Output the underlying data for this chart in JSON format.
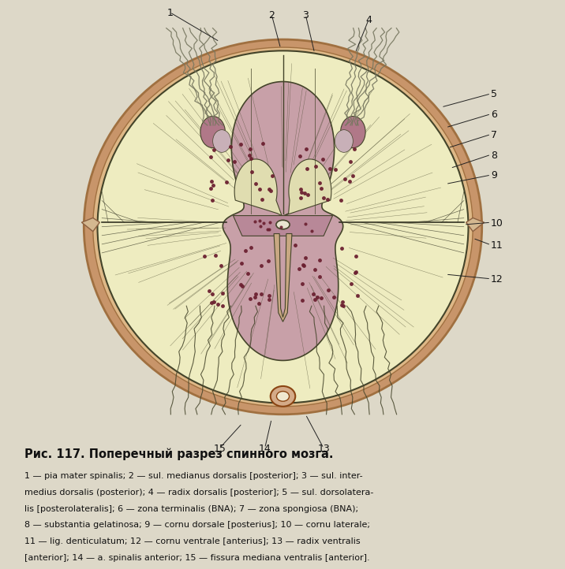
{
  "bg_color": "#ddd8c8",
  "label_color": "#111111",
  "label_fontsize": 9,
  "title": "Рис. 117. Поперечный разрез спинного мозга.",
  "caption_lines": [
    "1 — pia mater spinalis; 2 — sul. medianus dorsalis [posterior]; 3 — sul. inter-",
    "medius dorsalis (posterior); 4 — radix dorsalis [posterior]; 5 — sul. dorsolaterа-",
    "lis [posterolateralis]; 6 — zona terminalis (BNA); 7 — zona spongiosa (BNA);",
    "8 — substantia gelatinosa; 9 — cornu dorsale [posterius]; 10 — cornu laterale;",
    "11 — lig. denticulatum; 12 — cornu ventrale [anterius]; 13 — radix ventralis",
    "[anterior]; 14 — a. spinalis anterior; 15 — fissura mediana ventralis [anterior]."
  ],
  "dura_outer_color": "#c8956a",
  "dura_inner_color": "#deb887",
  "white_matter_color": "#eeecc0",
  "gray_matter_color": "#c8a0a8",
  "commissure_color": "#b88898",
  "dot_color": "#6b2030",
  "nerve_color": "#888870",
  "fiber_color": "#44442a",
  "dark_line": "#333322"
}
